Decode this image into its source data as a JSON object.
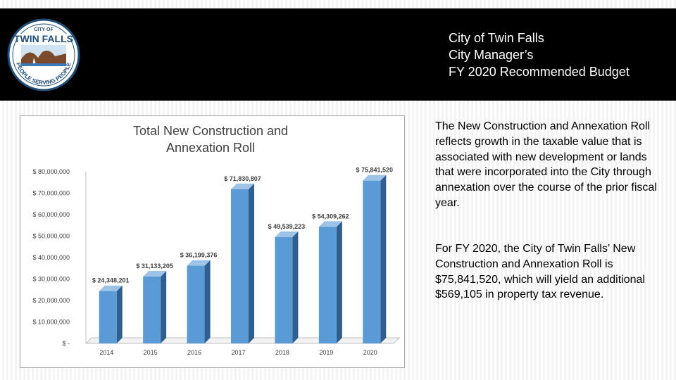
{
  "header": {
    "logo": {
      "top_text": "CITY OF",
      "name": "TWIN FALLS",
      "ring_text": "PEOPLE SERVING PEOPLE"
    },
    "title_lines": [
      "City of Twin Falls",
      "City Manager’s",
      "FY 2020 Recommended Budget"
    ]
  },
  "body_text": {
    "paragraph_1": "The New Construction and Annexation Roll reflects growth in the taxable value that is associated with new development or lands that were incorporated into the City through annexation over the course of the prior fiscal year.",
    "paragraph_2": "For FY 2020, the City of Twin Falls’ New Construction and Annexation Roll is $75,841,520, which will yield an additional $569,105 in property tax revenue."
  },
  "colors": {
    "bar_front": "#5b9bd5",
    "bar_side": "#2e5f8f",
    "bar_top": "#9dc3e6",
    "header_bg": "#000000"
  },
  "chart_data": {
    "type": "bar",
    "title": "Total New Construction and Annexation Roll",
    "categories": [
      "2014",
      "2015",
      "2016",
      "2017",
      "2018",
      "2019",
      "2020"
    ],
    "values": [
      24348201,
      31133205,
      36199376,
      71830807,
      49539223,
      54309262,
      75841520
    ],
    "value_labels": [
      "$ 24,348,201",
      "$ 31,133,205",
      "$ 36,199,376",
      "$ 71,830,807",
      "$ 49,539,223",
      "$ 54,309,262",
      "$ 75,841,520"
    ],
    "ylim": [
      0,
      80000000
    ],
    "yticks": [
      0,
      10000000,
      20000000,
      30000000,
      40000000,
      50000000,
      60000000,
      70000000,
      80000000
    ],
    "ytick_labels": [
      "$ -",
      "$ 10,000,000",
      "$ 20,000,000",
      "$ 30,000,000",
      "$ 40,000,000",
      "$ 50,000,000",
      "$ 60,000,000",
      "$ 70,000,000",
      "$ 80,000,000"
    ],
    "grid": false,
    "legend": "none"
  }
}
